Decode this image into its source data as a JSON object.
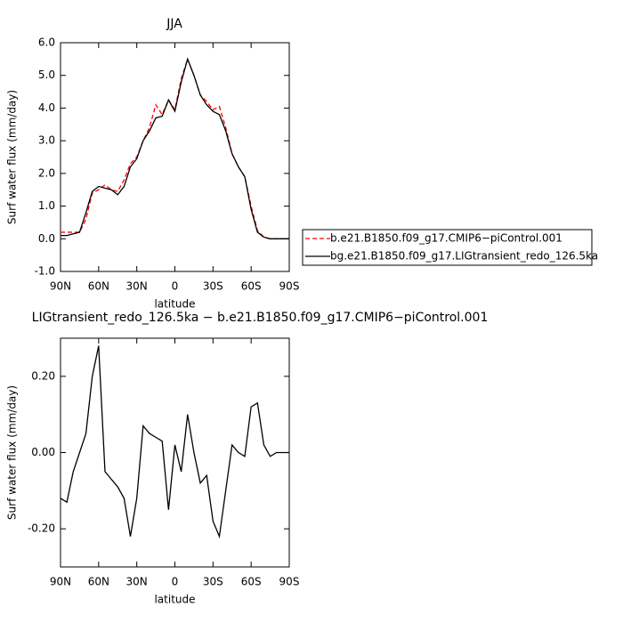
{
  "chart_data": [
    {
      "type": "line",
      "title": "JJA",
      "ylabel": "Surf water flux (mm/day)",
      "xlabel": "latitude",
      "x": [
        90,
        85,
        80,
        75,
        70,
        65,
        60,
        55,
        50,
        45,
        40,
        35,
        30,
        25,
        20,
        15,
        10,
        5,
        0,
        -5,
        -10,
        -15,
        -20,
        -25,
        -30,
        -35,
        -40,
        -45,
        -50,
        -55,
        -60,
        -65,
        -70,
        -75,
        -80,
        -85,
        -90
      ],
      "xlim": [
        90,
        -90
      ],
      "xticks": [
        {
          "value": 90,
          "label": "90N"
        },
        {
          "value": 60,
          "label": "60N"
        },
        {
          "value": 30,
          "label": "30N"
        },
        0,
        {
          "value": -30,
          "label": "30S"
        },
        {
          "value": -60,
          "label": "60S"
        },
        {
          "value": -90,
          "label": "90S"
        }
      ],
      "ylim": [
        -1,
        6
      ],
      "yticks": [
        {
          "value": -1,
          "label": "-1.0"
        },
        {
          "value": 0,
          "label": "0.0"
        },
        {
          "value": 1,
          "label": "1.0"
        },
        {
          "value": 2,
          "label": "2.0"
        },
        {
          "value": 3,
          "label": "3.0"
        },
        {
          "value": 4,
          "label": "4.0"
        },
        {
          "value": 5,
          "label": "5.0"
        },
        {
          "value": 6,
          "label": "6.0"
        }
      ],
      "series": [
        {
          "name": "b.e21.B1850.f09_g17.CMIP6−piControl.001",
          "color": "#ff0000",
          "dashed": true,
          "values": [
            0.2,
            0.2,
            0.2,
            0.2,
            0.6,
            1.4,
            1.5,
            1.65,
            1.5,
            1.45,
            1.8,
            2.3,
            2.5,
            3.0,
            3.4,
            4.1,
            3.8,
            4.25,
            3.95,
            4.9,
            5.5,
            5.0,
            4.4,
            4.2,
            3.95,
            4.05,
            3.4,
            2.6,
            2.2,
            1.9,
            1.0,
            0.25,
            0.05,
            0.0,
            0.0,
            0.0,
            0.0
          ]
        },
        {
          "name": "bg.e21.B1850.f09_g17.LIGtransient_redo_126.5ka",
          "color": "#000000",
          "dashed": false,
          "values": [
            0.1,
            0.1,
            0.15,
            0.2,
            0.8,
            1.45,
            1.6,
            1.55,
            1.5,
            1.35,
            1.6,
            2.2,
            2.45,
            3.0,
            3.3,
            3.7,
            3.75,
            4.25,
            3.9,
            4.8,
            5.5,
            5.0,
            4.4,
            4.1,
            3.9,
            3.8,
            3.3,
            2.6,
            2.2,
            1.9,
            0.9,
            0.2,
            0.05,
            0.0,
            0.0,
            0.0,
            0.0
          ]
        }
      ]
    },
    {
      "type": "line",
      "title": "LIGtransient_redo_126.5ka − b.e21.B1850.f09_g17.CMIP6−piControl.001",
      "ylabel": "Surf water flux (mm/day)",
      "xlabel": "latitude",
      "x": [
        90,
        85,
        80,
        75,
        70,
        65,
        60,
        55,
        50,
        45,
        40,
        35,
        30,
        25,
        20,
        15,
        10,
        5,
        0,
        -5,
        -10,
        -15,
        -20,
        -25,
        -30,
        -35,
        -40,
        -45,
        -50,
        -55,
        -60,
        -65,
        -70,
        -75,
        -80,
        -85,
        -90
      ],
      "xlim": [
        90,
        -90
      ],
      "xticks": [
        {
          "value": 90,
          "label": "90N"
        },
        {
          "value": 60,
          "label": "60N"
        },
        {
          "value": 30,
          "label": "30N"
        },
        0,
        {
          "value": -30,
          "label": "30S"
        },
        {
          "value": -60,
          "label": "60S"
        },
        {
          "value": -90,
          "label": "90S"
        }
      ],
      "ylim": [
        -0.3,
        0.3
      ],
      "yticks": [
        {
          "value": -0.2,
          "label": "-0.20"
        },
        {
          "value": 0,
          "label": "0.00"
        },
        {
          "value": 0.2,
          "label": "0.20"
        }
      ],
      "color": "#000000",
      "values": [
        -0.12,
        -0.13,
        -0.05,
        0.0,
        0.05,
        0.2,
        0.28,
        -0.05,
        -0.07,
        -0.09,
        -0.12,
        -0.22,
        -0.12,
        0.07,
        0.05,
        0.04,
        0.03,
        -0.15,
        0.02,
        -0.05,
        0.1,
        0.0,
        -0.08,
        -0.06,
        -0.18,
        -0.22,
        -0.1,
        0.02,
        0.0,
        -0.01,
        0.12,
        0.13,
        0.02,
        -0.01,
        0.0,
        0.0,
        0.0
      ]
    }
  ]
}
